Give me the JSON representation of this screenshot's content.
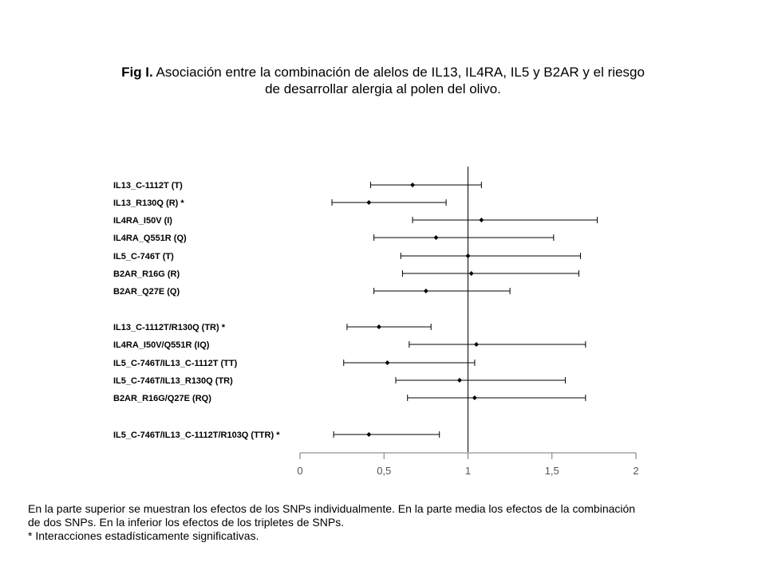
{
  "title": {
    "prefix": "Fig I.",
    "line1": " Asociación entre la combinación de alelos de IL13, IL4RA, IL5 y B2AR y el riesgo",
    "line2": "de desarrollar alergia al polen del olivo."
  },
  "chart_data": {
    "type": "forest",
    "xlim": [
      0,
      2
    ],
    "x_ticks": [
      "0",
      "0,5",
      "1",
      "1,5",
      "2"
    ],
    "x_tick_values": [
      0,
      0.5,
      1,
      1.5,
      2
    ],
    "reference_line": 1,
    "rows": [
      {
        "label": "IL13_C-1112T (T)",
        "estimate": 0.67,
        "lower": 0.42,
        "upper": 1.08
      },
      {
        "label": "IL13_R130Q (R) *",
        "estimate": 0.41,
        "lower": 0.19,
        "upper": 0.87
      },
      {
        "label": "IL4RA_I50V (I)",
        "estimate": 1.08,
        "lower": 0.67,
        "upper": 1.77
      },
      {
        "label": "IL4RA_Q551R (Q)",
        "estimate": 0.81,
        "lower": 0.44,
        "upper": 1.51
      },
      {
        "label": "IL5_C-746T (T)",
        "estimate": 1.0,
        "lower": 0.6,
        "upper": 1.67
      },
      {
        "label": "B2AR_R16G (R)",
        "estimate": 1.02,
        "lower": 0.61,
        "upper": 1.66
      },
      {
        "label": "B2AR_Q27E (Q)",
        "estimate": 0.75,
        "lower": 0.44,
        "upper": 1.25
      },
      {
        "label": "IL13_C-1112T/R130Q (TR) *",
        "estimate": 0.47,
        "lower": 0.28,
        "upper": 0.78
      },
      {
        "label": "IL4RA_I50V/Q551R (IQ)",
        "estimate": 1.05,
        "lower": 0.65,
        "upper": 1.7
      },
      {
        "label": "IL5_C-746T/IL13_C-1112T  (TT)",
        "estimate": 0.52,
        "lower": 0.26,
        "upper": 1.04
      },
      {
        "label": "IL5_C-746T/IL13_R130Q  (TR)",
        "estimate": 0.95,
        "lower": 0.57,
        "upper": 1.58
      },
      {
        "label": "B2AR_R16G/Q27E (RQ)",
        "estimate": 1.04,
        "lower": 0.64,
        "upper": 1.7
      },
      {
        "label": "IL5_C-746T/IL13_C-1112T/R103Q (TTR) *",
        "estimate": 0.41,
        "lower": 0.2,
        "upper": 0.83
      }
    ]
  },
  "caption": {
    "line1": "En la parte superior se muestran los efectos de los SNPs individualmente. En la parte media los efectos de la combinación",
    "line2": "de dos SNPs. En la inferior los efectos de los tripletes de SNPs.",
    "line3": "* Interacciones estadísticamente significativas."
  }
}
